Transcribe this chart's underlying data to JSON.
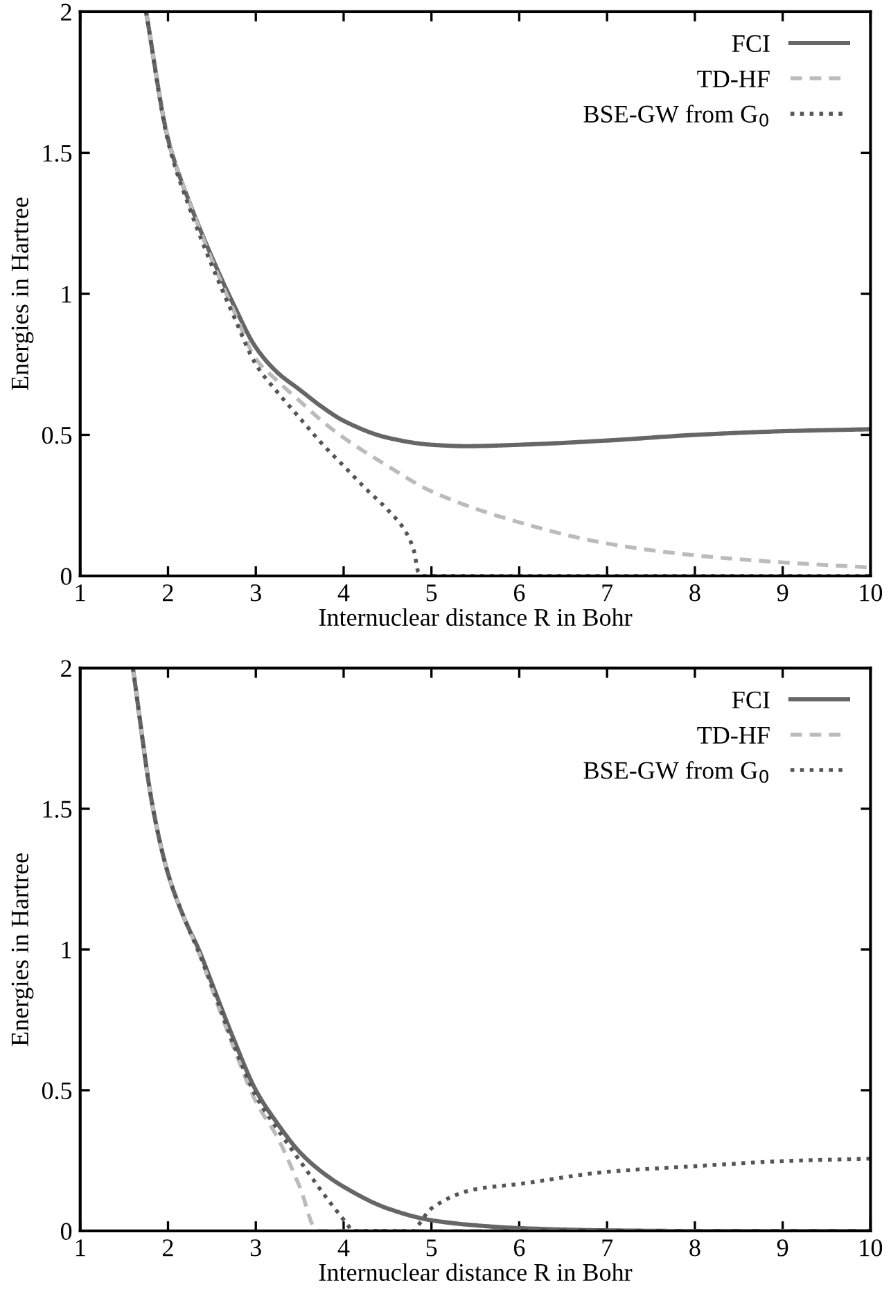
{
  "chart_data": [
    {
      "type": "line",
      "xlabel": "Internuclear distance R in Bohr",
      "ylabel": "Energies in Hartree",
      "xlim": [
        1,
        10
      ],
      "ylim": [
        0,
        2
      ],
      "xticks": [
        1,
        2,
        3,
        4,
        5,
        6,
        7,
        8,
        9,
        10
      ],
      "yticks": [
        0,
        0.5,
        1,
        1.5,
        2
      ],
      "legend": "top right",
      "grid": false,
      "series": [
        {
          "name": "FCI",
          "color": "#666666",
          "line_style": "solid",
          "x": [
            1.75,
            2,
            2.25,
            2.5,
            2.75,
            3,
            3.25,
            3.5,
            3.75,
            4,
            4.5,
            5,
            5.4,
            6,
            7,
            8,
            9,
            10
          ],
          "values": [
            2,
            1.55,
            1.32,
            1.13,
            0.96,
            0.81,
            0.72,
            0.66,
            0.6,
            0.55,
            0.49,
            0.465,
            0.46,
            0.465,
            0.48,
            0.5,
            0.513,
            0.52
          ]
        },
        {
          "name": "TD-HF",
          "color": "#bbbbbb",
          "line_style": "dashed",
          "x": [
            1.75,
            2,
            2.25,
            2.5,
            2.75,
            3,
            3.25,
            3.5,
            3.75,
            4,
            4.5,
            5,
            6,
            7,
            8,
            9,
            10
          ],
          "values": [
            2,
            1.55,
            1.32,
            1.12,
            0.94,
            0.77,
            0.69,
            0.62,
            0.55,
            0.49,
            0.39,
            0.3,
            0.19,
            0.115,
            0.073,
            0.048,
            0.03
          ]
        },
        {
          "name": "BSE-GW from G$_{0}$",
          "color": "#555555",
          "line_style": "dotted",
          "x": [
            1.75,
            2,
            2.25,
            2.5,
            2.75,
            3,
            3.25,
            3.5,
            3.75,
            4,
            4.25,
            4.5,
            4.7,
            4.8,
            4.85,
            4.9,
            5,
            6,
            7,
            8,
            9,
            10
          ],
          "values": [
            2,
            1.54,
            1.3,
            1.1,
            0.92,
            0.75,
            0.65,
            0.56,
            0.47,
            0.39,
            0.31,
            0.235,
            0.16,
            0.09,
            0.015,
            0,
            0,
            0,
            0,
            0,
            0,
            0
          ]
        }
      ]
    },
    {
      "type": "line",
      "xlabel": "Internuclear distance R in Bohr",
      "ylabel": "Energies in Hartree",
      "xlim": [
        1,
        10
      ],
      "ylim": [
        0,
        2
      ],
      "xticks": [
        1,
        2,
        3,
        4,
        5,
        6,
        7,
        8,
        9,
        10
      ],
      "yticks": [
        0,
        0.5,
        1,
        1.5,
        2
      ],
      "legend": "top right",
      "grid": false,
      "series": [
        {
          "name": "FCI",
          "color": "#666666",
          "line_style": "solid",
          "x": [
            1.6,
            1.83,
            2,
            2.2,
            2.35,
            2.5,
            2.75,
            3,
            3.25,
            3.5,
            3.75,
            4,
            4.5,
            5,
            5.5,
            6,
            7,
            8,
            9,
            10
          ],
          "values": [
            2,
            1.5,
            1.27,
            1.1,
            1,
            0.88,
            0.68,
            0.5,
            0.38,
            0.28,
            0.21,
            0.157,
            0.08,
            0.038,
            0.02,
            0.01,
            0.002,
            0,
            0,
            0
          ]
        },
        {
          "name": "TD-HF",
          "color": "#bbbbbb",
          "line_style": "dashed",
          "x": [
            1.6,
            1.83,
            2,
            2.2,
            2.35,
            2.5,
            2.75,
            3,
            3.25,
            3.5,
            3.7,
            4,
            5,
            6,
            7,
            8,
            9,
            10
          ],
          "values": [
            2,
            1.5,
            1.27,
            1.1,
            0.99,
            0.86,
            0.65,
            0.46,
            0.33,
            0.157,
            0,
            0,
            0,
            0,
            0,
            0,
            0,
            0
          ]
        },
        {
          "name": "BSE-GW from G$_{0}$",
          "color": "#555555",
          "line_style": "dotted",
          "x": [
            1.6,
            1.83,
            2,
            2.2,
            2.35,
            2.5,
            2.75,
            3,
            3.25,
            3.5,
            3.8,
            4.05,
            4.1,
            4.5,
            4.8,
            4.85,
            5,
            5.5,
            6,
            7,
            8,
            9,
            10
          ],
          "values": [
            2,
            1.5,
            1.27,
            1.1,
            0.99,
            0.87,
            0.66,
            0.48,
            0.36,
            0.25,
            0.12,
            0.02,
            0,
            0,
            0,
            0.02,
            0.08,
            0.148,
            0.167,
            0.21,
            0.23,
            0.248,
            0.257
          ]
        }
      ]
    }
  ]
}
